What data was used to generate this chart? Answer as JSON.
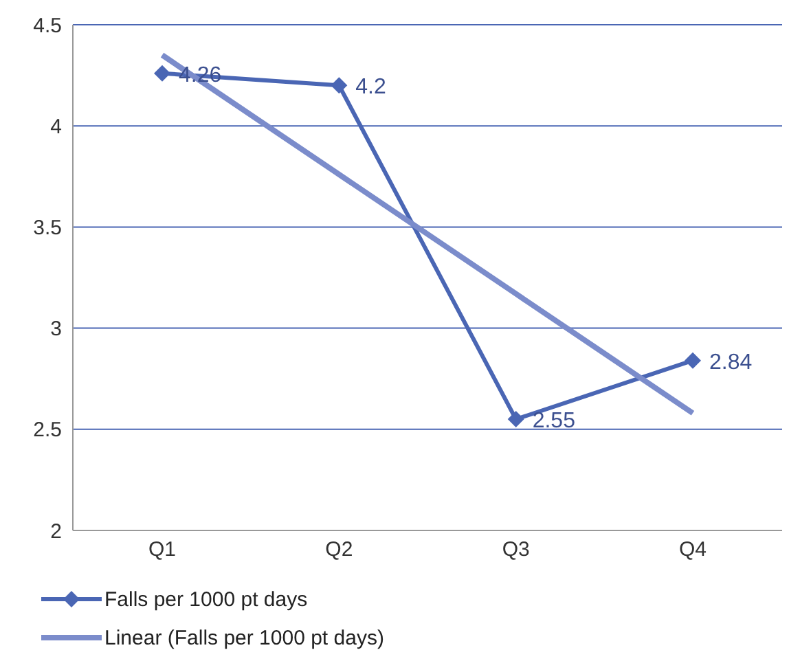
{
  "chart_data": {
    "type": "line",
    "categories": [
      "Q1",
      "Q2",
      "Q3",
      "Q4"
    ],
    "series": [
      {
        "name": "Falls per 1000 pt days",
        "color": "#4a66b4",
        "values": [
          4.26,
          4.2,
          2.55,
          2.84
        ],
        "marker": "diamond",
        "value_labels": [
          "4.26",
          "4.2",
          "2.55",
          "2.84"
        ]
      },
      {
        "name": "Linear (Falls per 1000 pt days)",
        "color": "#7b8ccb",
        "values": [
          4.35,
          3.76,
          3.17,
          2.58
        ],
        "marker": "none"
      }
    ],
    "ylim": [
      2,
      4.5
    ],
    "yticks": [
      2,
      2.5,
      3,
      3.5,
      4,
      4.5
    ],
    "grid": "y",
    "legend": "bottom"
  }
}
